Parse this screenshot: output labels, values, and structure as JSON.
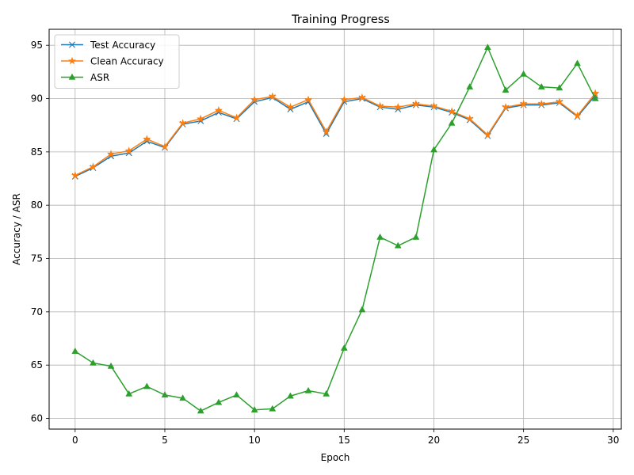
{
  "chart_data": {
    "type": "line",
    "title": "Training Progress",
    "xlabel": "Epoch",
    "ylabel": "Accuracy / ASR",
    "xlim": [
      -1.45,
      30.45
    ],
    "ylim": [
      59.0,
      96.5
    ],
    "xticks": [
      0,
      5,
      10,
      15,
      20,
      25,
      30
    ],
    "yticks": [
      60,
      65,
      70,
      75,
      80,
      85,
      90,
      95
    ],
    "grid": true,
    "legend": "top-left",
    "x": [
      0,
      1,
      2,
      3,
      4,
      5,
      6,
      7,
      8,
      9,
      10,
      11,
      12,
      13,
      14,
      15,
      16,
      17,
      18,
      19,
      20,
      21,
      22,
      23,
      24,
      25,
      26,
      27,
      28,
      29
    ],
    "series": [
      {
        "name": "Test Accuracy",
        "color": "#1f77b4",
        "marker": "x",
        "values": [
          82.7,
          83.5,
          84.6,
          84.9,
          86.0,
          85.4,
          87.6,
          87.9,
          88.7,
          88.1,
          89.7,
          90.1,
          89.0,
          89.7,
          86.7,
          89.7,
          90.0,
          89.2,
          89.0,
          89.4,
          89.2,
          88.7,
          88.0,
          86.5,
          89.1,
          89.4,
          89.4,
          89.6,
          88.3,
          90.3
        ]
      },
      {
        "name": "Clean Accuracy",
        "color": "#ff7f0e",
        "marker": "star",
        "values": [
          82.8,
          83.6,
          84.8,
          85.1,
          86.2,
          85.5,
          87.7,
          88.1,
          88.9,
          88.2,
          89.9,
          90.2,
          89.2,
          89.9,
          86.9,
          89.9,
          90.1,
          89.3,
          89.2,
          89.5,
          89.3,
          88.8,
          88.1,
          86.6,
          89.2,
          89.5,
          89.5,
          89.7,
          88.4,
          90.5
        ]
      },
      {
        "name": "ASR",
        "color": "#2ca02c",
        "marker": "triangle",
        "values": [
          66.3,
          65.2,
          64.9,
          62.3,
          63.0,
          62.2,
          61.9,
          60.7,
          61.5,
          62.2,
          60.8,
          60.9,
          62.1,
          62.6,
          62.3,
          66.6,
          70.2,
          77.0,
          76.2,
          77.0,
          85.2,
          87.7,
          91.1,
          94.8,
          90.8,
          92.3,
          91.1,
          91.0,
          93.3,
          90.0
        ]
      }
    ]
  }
}
